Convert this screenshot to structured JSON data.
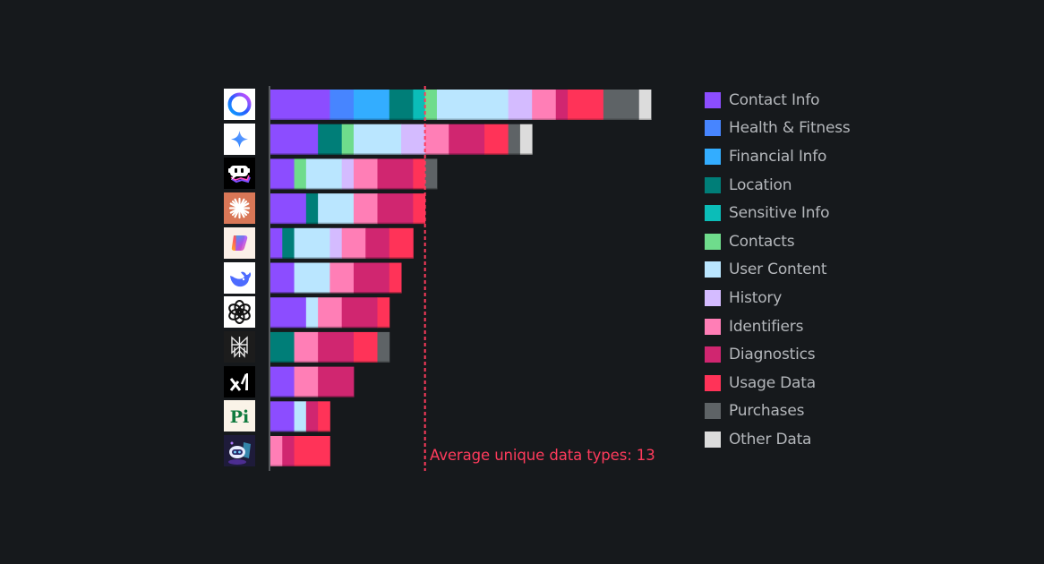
{
  "chart_data": {
    "type": "bar",
    "orientation": "horizontal",
    "stacked": true,
    "title": "",
    "xlabel": "",
    "ylabel": "",
    "xlim": [
      0,
      32
    ],
    "grid": false,
    "legend_position": "right",
    "categories": [
      {
        "name": "Meta AI",
        "icon": "meta-ai-icon"
      },
      {
        "name": "Gemini",
        "icon": "gemini-icon"
      },
      {
        "name": "Poe",
        "icon": "poe-icon"
      },
      {
        "name": "Claude",
        "icon": "claude-icon"
      },
      {
        "name": "Copilot",
        "icon": "copilot-icon"
      },
      {
        "name": "DeepSeek",
        "icon": "deepseek-icon"
      },
      {
        "name": "ChatGPT",
        "icon": "chatgpt-icon"
      },
      {
        "name": "Perplexity",
        "icon": "perplexity-icon"
      },
      {
        "name": "Grok",
        "icon": "grok-icon"
      },
      {
        "name": "Pi",
        "icon": "pi-icon"
      },
      {
        "name": "Chatbot",
        "icon": "chatbot-icon"
      }
    ],
    "series": [
      {
        "name": "Contact Info",
        "color": "#8c4dff",
        "values": [
          5,
          4,
          2,
          3,
          1,
          2,
          3,
          0,
          2,
          2,
          0
        ]
      },
      {
        "name": "Health & Fitness",
        "color": "#4785ff",
        "values": [
          2,
          0,
          0,
          0,
          0,
          0,
          0,
          0,
          0,
          0,
          0
        ]
      },
      {
        "name": "Financial Info",
        "color": "#33adff",
        "values": [
          3,
          0,
          0,
          0,
          0,
          0,
          0,
          0,
          0,
          0,
          0
        ]
      },
      {
        "name": "Location",
        "color": "#007e78",
        "values": [
          2,
          2,
          0,
          1,
          1,
          0,
          0,
          2,
          0,
          0,
          0
        ]
      },
      {
        "name": "Sensitive Info",
        "color": "#0bbdb8",
        "values": [
          1,
          0,
          0,
          0,
          0,
          0,
          0,
          0,
          0,
          0,
          0
        ]
      },
      {
        "name": "Contacts",
        "color": "#6fdc8c",
        "values": [
          1,
          1,
          1,
          0,
          0,
          0,
          0,
          0,
          0,
          0,
          0
        ]
      },
      {
        "name": "User Content",
        "color": "#bae6ff",
        "values": [
          6,
          4,
          3,
          3,
          3,
          3,
          1,
          0,
          0,
          1,
          0
        ]
      },
      {
        "name": "History",
        "color": "#d4bbff",
        "values": [
          2,
          2,
          1,
          0,
          1,
          0,
          0,
          0,
          0,
          0,
          0
        ]
      },
      {
        "name": "Identifiers",
        "color": "#ff7eb6",
        "values": [
          2,
          2,
          2,
          2,
          2,
          2,
          2,
          2,
          2,
          0,
          1
        ]
      },
      {
        "name": "Diagnostics",
        "color": "#d02670",
        "values": [
          1,
          3,
          3,
          3,
          2,
          3,
          3,
          3,
          3,
          1,
          1
        ]
      },
      {
        "name": "Usage Data",
        "color": "#ff3358",
        "values": [
          3,
          2,
          1,
          1,
          2,
          1,
          1,
          2,
          0,
          1,
          3
        ]
      },
      {
        "name": "Purchases",
        "color": "#5e6366",
        "values": [
          3,
          1,
          1,
          0,
          0,
          0,
          0,
          1,
          0,
          0,
          0
        ]
      },
      {
        "name": "Other Data",
        "color": "#dcdcdc",
        "values": [
          1,
          1,
          0,
          0,
          0,
          0,
          0,
          0,
          0,
          0,
          0
        ]
      }
    ],
    "totals": [
      32,
      22,
      14,
      13,
      12,
      11,
      10,
      10,
      7,
      5,
      5
    ],
    "reference_line": {
      "value": 13,
      "label": "Average unique data types: 13",
      "color": "#ff3b5c"
    }
  }
}
